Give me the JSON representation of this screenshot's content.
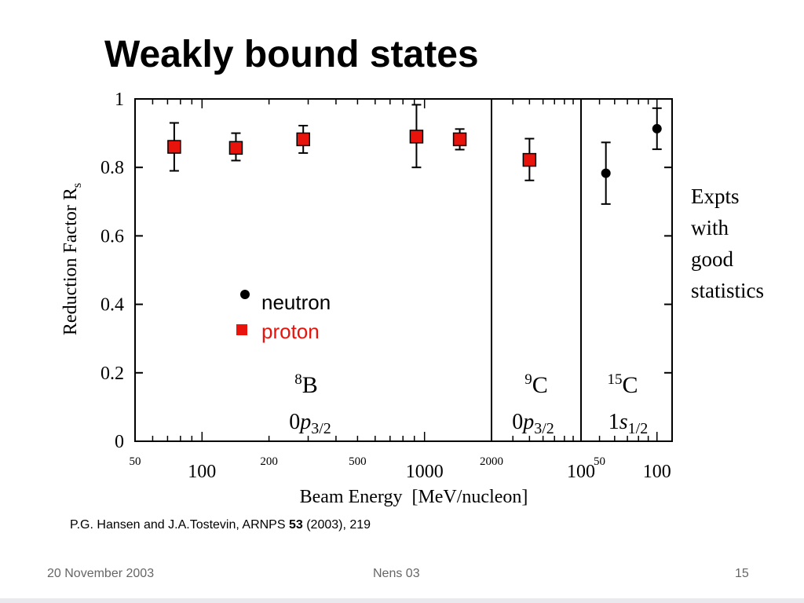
{
  "slide": {
    "title": "Weakly bound states",
    "side_note": [
      "Expts",
      "with",
      "good",
      "statistics"
    ],
    "reference": {
      "authors": "P.G. Hansen and J.A.Tostevin, ARNPS",
      "volume": "53",
      "rest": "(2003), 219"
    },
    "footer": {
      "date": "20 November 2003",
      "event": "Nens 03",
      "page": "15"
    }
  },
  "colors": {
    "proton": "#e8140c",
    "neutron": "#000000",
    "legend_proton_text": "#e8140c"
  },
  "chart_data": {
    "type": "scatter",
    "ylabel_main": "Reduction Factor R",
    "ylabel_sub": "s",
    "xlabel": "Beam Energy  [MeV/nucleon]",
    "ylim": [
      0,
      1
    ],
    "yticks": [
      "0",
      "0.2",
      "0.4",
      "0.6",
      "0.8",
      "1"
    ],
    "legend": [
      {
        "marker": "circle",
        "label": "neutron"
      },
      {
        "marker": "square",
        "label": "proton"
      }
    ],
    "panels": [
      {
        "nucleus_mass": "8",
        "nucleus": "B",
        "orbital_n": "0",
        "orbital_l": "p",
        "orbital_j": "3/2",
        "x_scale": "log",
        "xlim": [
          50,
          2000
        ],
        "xticks_major": [
          "100",
          "1000"
        ],
        "xticks_minor": [
          "50",
          "200",
          "500",
          "2000"
        ],
        "points": [
          {
            "x": 75,
            "y": 0.86,
            "err_lo": 0.07,
            "err_hi": 0.07,
            "species": "proton"
          },
          {
            "x": 142,
            "y": 0.857,
            "err_lo": 0.037,
            "err_hi": 0.043,
            "species": "proton"
          },
          {
            "x": 285,
            "y": 0.882,
            "err_lo": 0.04,
            "err_hi": 0.04,
            "species": "proton"
          },
          {
            "x": 920,
            "y": 0.89,
            "err_lo": 0.09,
            "err_hi": 0.093,
            "species": "proton"
          },
          {
            "x": 1440,
            "y": 0.882,
            "err_lo": 0.03,
            "err_hi": 0.03,
            "species": "proton"
          }
        ]
      },
      {
        "nucleus_mass": "9",
        "nucleus": "C",
        "orbital_n": "0",
        "orbital_l": "p",
        "orbital_j": "3/2",
        "x_scale": "log",
        "xlim": [
          30,
          100
        ],
        "xticks_major": [
          "100"
        ],
        "xticks_minor": [],
        "points": [
          {
            "x": 50,
            "y": 0.822,
            "err_lo": 0.06,
            "err_hi": 0.062,
            "species": "proton"
          }
        ]
      },
      {
        "nucleus_mass": "15",
        "nucleus": "C",
        "orbital_n": "1",
        "orbital_l": "s",
        "orbital_j": "1/2",
        "x_scale": "log",
        "xlim": [
          40,
          120
        ],
        "xticks_major": [
          "100"
        ],
        "xticks_minor": [
          "50"
        ],
        "points": [
          {
            "x": 54,
            "y": 0.783,
            "err_lo": 0.09,
            "err_hi": 0.09,
            "species": "neutron"
          },
          {
            "x": 100,
            "y": 0.913,
            "err_lo": 0.06,
            "err_hi": 0.06,
            "species": "neutron"
          }
        ]
      }
    ]
  }
}
